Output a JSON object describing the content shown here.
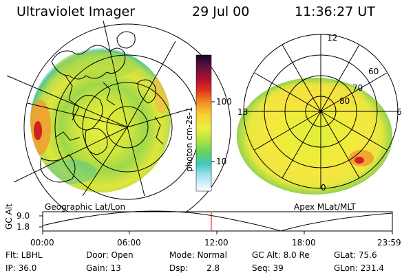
{
  "header": {
    "instrument": "Ultraviolet Imager",
    "date": "29 Jul 00",
    "time": "11:36:27 UT"
  },
  "colors": {
    "background": "#ffffff",
    "colorbar_top": "#1a0a33",
    "marker_line": "#e00000"
  },
  "left_panel": {
    "label": "Geographic Lat/Lon"
  },
  "right_panel": {
    "label": "Apex MLat/MLT",
    "mlt_labels": [
      "12",
      "18",
      "6",
      "0"
    ],
    "lat_labels": [
      "60",
      "70",
      "80"
    ]
  },
  "colorbar": {
    "unit_label": "photon cm-2s-1",
    "ticks": [
      "100",
      "10"
    ]
  },
  "timeline": {
    "y_label": "GC Alt",
    "y_ticks": [
      "9.0",
      "1.8"
    ],
    "x_ticks": [
      "00:00",
      "06:00",
      "12:00",
      "18:00",
      "23:59"
    ],
    "marker_time": "11:36:27"
  },
  "info": {
    "flt": "Flt: LBHL",
    "ip": "IP: 36.0",
    "door": "Door: Open",
    "gain": "Gain: 13",
    "mode": "Mode: Normal",
    "dsp_label": "Dsp:",
    "dsp_value": "2.8",
    "gc_alt": "GC Alt: 8.0 Re",
    "seq": "Seq: 39",
    "glat": "GLat: 75.6",
    "glon": "GLon: 231.4"
  }
}
